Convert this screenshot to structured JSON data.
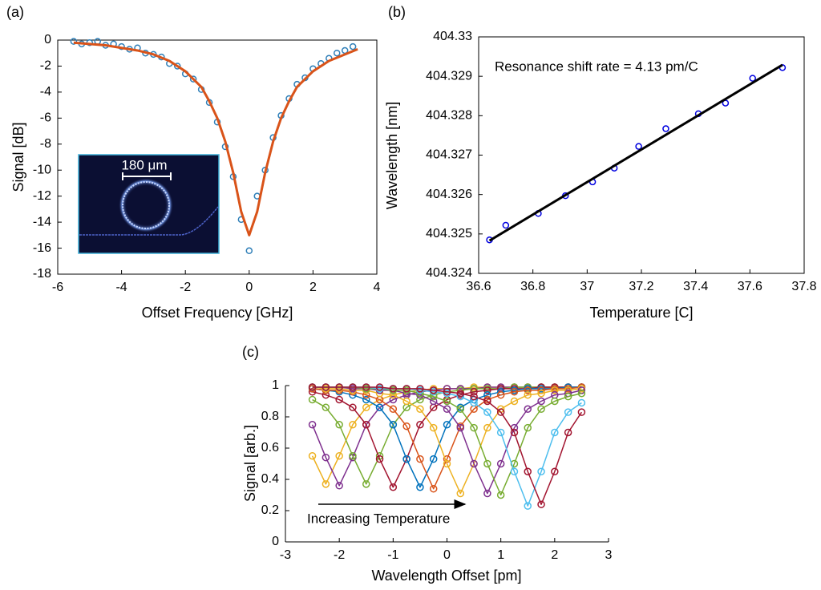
{
  "chart_data": [
    {
      "type": "scatter",
      "panel": "(a)",
      "x_label": "Offset Frequency [GHz]",
      "y_label": "Signal [dB]",
      "inset_label": "180 μm",
      "xlim": [
        -6,
        4
      ],
      "xticks": [
        -6,
        -4,
        -2,
        0,
        2,
        4
      ],
      "ylim": [
        -18,
        0
      ],
      "yticks": [
        0,
        -2,
        -4,
        -6,
        -8,
        -10,
        -12,
        -14,
        -16,
        -18
      ],
      "series": [
        {
          "style": "markers",
          "color": "#2f7fb8",
          "x": [
            -5.5,
            -5.25,
            -5,
            -4.75,
            -4.5,
            -4.25,
            -4,
            -3.75,
            -3.5,
            -3.25,
            -3,
            -2.75,
            -2.5,
            -2.25,
            -2,
            -1.75,
            -1.5,
            -1.25,
            -1,
            -0.75,
            -0.5,
            -0.25,
            0,
            0.25,
            0.5,
            0.75,
            1,
            1.25,
            1.5,
            1.75,
            2,
            2.25,
            2.5,
            2.75,
            3,
            3.25
          ],
          "values": [
            -0.1,
            -0.3,
            -0.2,
            -0.1,
            -0.4,
            -0.3,
            -0.5,
            -0.7,
            -0.6,
            -1.0,
            -1.1,
            -1.3,
            -1.8,
            -2.0,
            -2.6,
            -3.0,
            -3.8,
            -4.8,
            -6.3,
            -8.2,
            -10.5,
            -13.8,
            -16.2,
            -12.0,
            -10.0,
            -7.5,
            -5.8,
            -4.5,
            -3.4,
            -2.9,
            -2.2,
            -1.8,
            -1.4,
            -1.0,
            -0.8,
            -0.5
          ]
        },
        {
          "style": "line",
          "color": "#D95319",
          "x": [
            -5.5,
            -5,
            -4.5,
            -4,
            -3.5,
            -3,
            -2.5,
            -2,
            -1.5,
            -1.25,
            -1,
            -0.75,
            -0.5,
            -0.25,
            0,
            0.25,
            0.5,
            0.75,
            1,
            1.25,
            1.5,
            2,
            2.5,
            3,
            3.4
          ],
          "values": [
            -0.2,
            -0.3,
            -0.4,
            -0.6,
            -0.8,
            -1.1,
            -1.6,
            -2.4,
            -3.6,
            -4.7,
            -6.0,
            -7.8,
            -10.2,
            -13.2,
            -15.0,
            -13.2,
            -10.2,
            -7.8,
            -6.0,
            -4.7,
            -3.6,
            -2.4,
            -1.6,
            -1.1,
            -0.7
          ]
        }
      ]
    },
    {
      "type": "scatter",
      "panel": "(b)",
      "x_label": "Temperature [C]",
      "y_label": "Wavelength [nm]",
      "annotation": "Resonance shift rate = 4.13 pm/C",
      "xlim": [
        36.6,
        37.8
      ],
      "xticks": [
        36.6,
        36.8,
        37,
        37.2,
        37.4,
        37.6,
        37.8
      ],
      "ylim": [
        404.324,
        404.33
      ],
      "yticks": [
        404.324,
        404.325,
        404.326,
        404.327,
        404.328,
        404.329,
        404.33
      ],
      "series": [
        {
          "style": "markers",
          "color": "#0000e0",
          "x": [
            36.64,
            36.7,
            36.82,
            36.92,
            37.02,
            37.1,
            37.19,
            37.29,
            37.41,
            37.51,
            37.61,
            37.72
          ],
          "values": [
            404.32485,
            404.32522,
            404.32552,
            404.32597,
            404.32632,
            404.32667,
            404.32722,
            404.32767,
            404.32805,
            404.32832,
            404.32895,
            404.32922
          ]
        },
        {
          "style": "line",
          "color": "#000000",
          "x": [
            36.64,
            37.72
          ],
          "values": [
            404.32483,
            404.32929
          ]
        }
      ]
    },
    {
      "type": "line",
      "panel": "(c)",
      "x_label": "Wavelength Offset [pm]",
      "y_label": "Signal [arb.]",
      "annotation": "Increasing Temperature",
      "xlim": [
        -3,
        3
      ],
      "xticks": [
        -3,
        -2,
        -1,
        0,
        1,
        2,
        3
      ],
      "ylim": [
        0,
        1
      ],
      "yticks": [
        0,
        0.2,
        0.4,
        0.6,
        0.8,
        1
      ],
      "x": [
        -2.5,
        -2.25,
        -2,
        -1.75,
        -1.5,
        -1.25,
        -1,
        -0.75,
        -0.5,
        -0.25,
        0,
        0.25,
        0.5,
        0.75,
        1,
        1.25,
        1.5,
        1.75,
        2,
        2.25,
        2.5
      ],
      "series": [
        {
          "color": "#EDB120",
          "values": [
            0.55,
            0.37,
            0.55,
            0.75,
            0.86,
            0.91,
            0.94,
            0.96,
            0.97,
            0.98,
            0.98,
            0.98,
            0.99,
            0.99,
            0.99,
            0.99,
            0.99,
            0.99,
            0.99,
            0.99,
            0.99
          ]
        },
        {
          "color": "#7E2F8E",
          "values": [
            0.75,
            0.54,
            0.36,
            0.54,
            0.75,
            0.86,
            0.91,
            0.94,
            0.96,
            0.97,
            0.98,
            0.98,
            0.98,
            0.99,
            0.99,
            0.99,
            0.99,
            0.99,
            0.99,
            0.99,
            0.99
          ]
        },
        {
          "color": "#77AC30",
          "values": [
            0.91,
            0.86,
            0.75,
            0.55,
            0.37,
            0.55,
            0.75,
            0.86,
            0.91,
            0.94,
            0.96,
            0.97,
            0.98,
            0.98,
            0.98,
            0.99,
            0.99,
            0.99,
            0.99,
            0.99,
            0.99
          ]
        },
        {
          "color": "#A2142F",
          "values": [
            0.96,
            0.94,
            0.91,
            0.86,
            0.75,
            0.53,
            0.35,
            0.53,
            0.75,
            0.86,
            0.91,
            0.94,
            0.96,
            0.97,
            0.98,
            0.98,
            0.98,
            0.99,
            0.99,
            0.99,
            0.99
          ]
        },
        {
          "color": "#0072BD",
          "values": [
            0.98,
            0.97,
            0.96,
            0.94,
            0.91,
            0.86,
            0.75,
            0.53,
            0.35,
            0.53,
            0.75,
            0.86,
            0.91,
            0.94,
            0.96,
            0.97,
            0.98,
            0.98,
            0.98,
            0.99,
            0.99
          ]
        },
        {
          "color": "#D95319",
          "values": [
            0.98,
            0.97,
            0.97,
            0.96,
            0.94,
            0.91,
            0.85,
            0.74,
            0.53,
            0.34,
            0.53,
            0.74,
            0.85,
            0.91,
            0.94,
            0.96,
            0.97,
            0.97,
            0.98,
            0.98,
            0.99
          ]
        },
        {
          "color": "#EDB120",
          "values": [
            0.99,
            0.98,
            0.98,
            0.97,
            0.97,
            0.95,
            0.94,
            0.9,
            0.85,
            0.73,
            0.5,
            0.31,
            0.5,
            0.73,
            0.85,
            0.9,
            0.94,
            0.95,
            0.97,
            0.97,
            0.98
          ]
        },
        {
          "color": "#7E2F8E",
          "values": [
            0.99,
            0.99,
            0.99,
            0.98,
            0.98,
            0.97,
            0.97,
            0.95,
            0.94,
            0.9,
            0.85,
            0.73,
            0.5,
            0.31,
            0.5,
            0.73,
            0.85,
            0.9,
            0.94,
            0.95,
            0.97
          ]
        },
        {
          "color": "#77AC30",
          "values": [
            0.99,
            0.99,
            0.99,
            0.99,
            0.98,
            0.98,
            0.97,
            0.97,
            0.95,
            0.93,
            0.9,
            0.85,
            0.73,
            0.5,
            0.3,
            0.5,
            0.73,
            0.85,
            0.9,
            0.93,
            0.95
          ]
        },
        {
          "color": "#4DBEEE",
          "values": [
            0.99,
            0.99,
            0.99,
            0.99,
            0.99,
            0.98,
            0.98,
            0.98,
            0.97,
            0.96,
            0.95,
            0.93,
            0.89,
            0.83,
            0.7,
            0.45,
            0.23,
            0.45,
            0.7,
            0.83,
            0.89
          ]
        },
        {
          "color": "#A2142F",
          "values": [
            0.99,
            0.99,
            0.99,
            0.99,
            0.99,
            0.99,
            0.98,
            0.98,
            0.98,
            0.97,
            0.96,
            0.95,
            0.93,
            0.9,
            0.83,
            0.7,
            0.45,
            0.24,
            0.45,
            0.7,
            0.83
          ]
        }
      ]
    }
  ]
}
